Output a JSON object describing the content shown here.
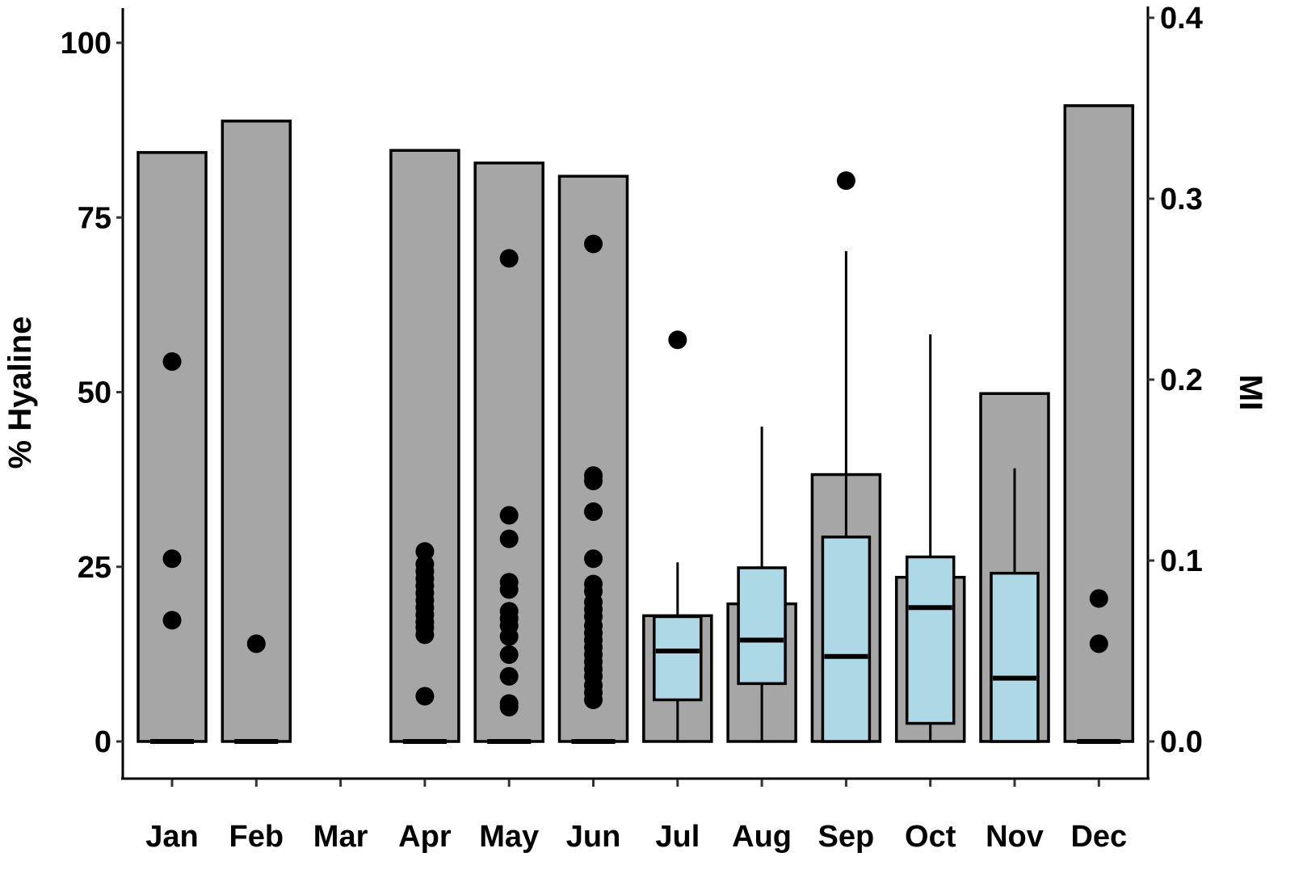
{
  "chart_data": {
    "type": "bar",
    "title": "",
    "xlabel": "",
    "ylabel": "% Hyaline",
    "ylabel_right": "MI",
    "ylim": [
      0,
      100
    ],
    "ylim_right": [
      0.0,
      0.4
    ],
    "yticks": [
      "0",
      "25",
      "50",
      "75",
      "100"
    ],
    "yticks_right": [
      "0.0",
      "0.1",
      "0.2",
      "0.3",
      "0.4"
    ],
    "categories": [
      "Jan",
      "Feb",
      "Mar",
      "Apr",
      "May",
      "Jun",
      "Jul",
      "Aug",
      "Sep",
      "Oct",
      "Nov",
      "Dec"
    ],
    "series": [
      {
        "name": "% Hyaline",
        "type": "bar",
        "axis": "left",
        "values": [
          84.3,
          88.8,
          null,
          84.6,
          82.8,
          80.9,
          18.0,
          19.7,
          38.2,
          23.5,
          49.8,
          91.0
        ]
      },
      {
        "name": "MI",
        "type": "boxplot",
        "axis": "right",
        "boxes": [
          {
            "month": "Jan",
            "min": 0.0,
            "q1": 0.0,
            "median": 0.0,
            "q3": 0.0,
            "max": 0.0,
            "outliers": [
              0.21,
              0.101,
              0.067
            ]
          },
          {
            "month": "Feb",
            "min": 0.0,
            "q1": 0.0,
            "median": 0.0,
            "q3": 0.0,
            "max": 0.0,
            "outliers": [
              0.054
            ]
          },
          {
            "month": "Mar",
            "min": null,
            "q1": null,
            "median": null,
            "q3": null,
            "max": null,
            "outliers": []
          },
          {
            "month": "Apr",
            "min": 0.0,
            "q1": 0.0,
            "median": 0.0,
            "q3": 0.0,
            "max": 0.0,
            "outliers": [
              0.105,
              0.098,
              0.094,
              0.09,
              0.086,
              0.082,
              0.078,
              0.074,
              0.07,
              0.066,
              0.063,
              0.059,
              0.025
            ]
          },
          {
            "month": "May",
            "min": 0.0,
            "q1": 0.0,
            "median": 0.0,
            "q3": 0.0,
            "max": 0.0,
            "outliers": [
              0.267,
              0.125,
              0.112,
              0.088,
              0.084,
              0.072,
              0.068,
              0.064,
              0.058,
              0.048,
              0.036,
              0.021,
              0.019
            ]
          },
          {
            "month": "Jun",
            "min": 0.0,
            "q1": 0.0,
            "median": 0.0,
            "q3": 0.0,
            "max": 0.0,
            "outliers": [
              0.275,
              0.147,
              0.144,
              0.127,
              0.101,
              0.087,
              0.083,
              0.077,
              0.073,
              0.069,
              0.064,
              0.06,
              0.056,
              0.052,
              0.048,
              0.044,
              0.04,
              0.036,
              0.031,
              0.027,
              0.023
            ]
          },
          {
            "month": "Jul",
            "min": 0.0,
            "q1": 0.023,
            "median": 0.05,
            "q3": 0.069,
            "max": 0.099,
            "outliers": [
              0.222
            ]
          },
          {
            "month": "Aug",
            "min": 0.0,
            "q1": 0.032,
            "median": 0.056,
            "q3": 0.096,
            "max": 0.174,
            "outliers": []
          },
          {
            "month": "Sep",
            "min": 0.0,
            "q1": 0.0,
            "median": 0.047,
            "q3": 0.113,
            "max": 0.271,
            "outliers": [
              0.31
            ]
          },
          {
            "month": "Oct",
            "min": 0.0,
            "q1": 0.01,
            "median": 0.074,
            "q3": 0.102,
            "max": 0.225,
            "outliers": []
          },
          {
            "month": "Nov",
            "min": 0.0,
            "q1": 0.0,
            "median": 0.035,
            "q3": 0.093,
            "max": 0.151,
            "outliers": []
          },
          {
            "month": "Dec",
            "min": 0.0,
            "q1": 0.0,
            "median": 0.0,
            "q3": 0.0,
            "max": 0.0,
            "outliers": [
              0.079,
              0.054
            ]
          }
        ]
      }
    ],
    "grid": false,
    "legend": null,
    "colors": {
      "bar_fill": "#a6a6a6",
      "box_fill": "#add8e6",
      "stroke": "#000000"
    }
  }
}
